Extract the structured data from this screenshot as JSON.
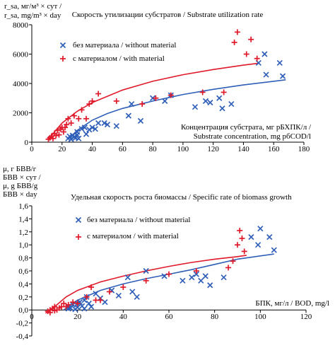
{
  "chart_data": [
    {
      "type": "scatter",
      "title": "Скорость утилизации субстратов / Substrate utilization rate",
      "ylabel_lines": [
        "r_sa, мг/м³ × сут /",
        "r_sa, mg/m³ × day"
      ],
      "xlabel_lines": [
        "Концентрация субстрата, мг рБХПК/л /",
        "Substrate concentration, mg рбCOD/l"
      ],
      "xlim": [
        0,
        180
      ],
      "ylim": [
        0,
        8000
      ],
      "xticks": [
        "0",
        "20",
        "40",
        "60",
        "80",
        "100",
        "120",
        "140",
        "160",
        "180"
      ],
      "yticks": [
        "0",
        "2000",
        "4000",
        "6000",
        "8000"
      ],
      "legend": [
        "без материала / without material",
        "с материалом / with material"
      ],
      "series": [
        {
          "name": "без материала / without material",
          "color": "#2f5fb8",
          "marker": "x",
          "points": [
            [
              24,
              250
            ],
            [
              25,
              400
            ],
            [
              26,
              200
            ],
            [
              27,
              450
            ],
            [
              28,
              350
            ],
            [
              29,
              300
            ],
            [
              30,
              500
            ],
            [
              30,
              700
            ],
            [
              31,
              250
            ],
            [
              33,
              900
            ],
            [
              35,
              1000
            ],
            [
              36,
              550
            ],
            [
              38,
              850
            ],
            [
              40,
              1000
            ],
            [
              42,
              900
            ],
            [
              44,
              1300
            ],
            [
              48,
              1300
            ],
            [
              50,
              1200
            ],
            [
              56,
              1100
            ],
            [
              64,
              1800
            ],
            [
              66,
              2600
            ],
            [
              72,
              1450
            ],
            [
              80,
              3000
            ],
            [
              88,
              2800
            ],
            [
              92,
              3200
            ],
            [
              108,
              2400
            ],
            [
              115,
              2800
            ],
            [
              118,
              2700
            ],
            [
              124,
              3000
            ],
            [
              126,
              2300
            ],
            [
              132,
              2600
            ],
            [
              150,
              5400
            ],
            [
              154,
              6000
            ],
            [
              155,
              4600
            ],
            [
              164,
              5400
            ],
            [
              166,
              4500
            ]
          ],
          "fit": [
            [
              24,
              200
            ],
            [
              30,
              800
            ],
            [
              40,
              1500
            ],
            [
              50,
              1950
            ],
            [
              60,
              2300
            ],
            [
              80,
              2800
            ],
            [
              100,
              3250
            ],
            [
              120,
              3600
            ],
            [
              140,
              3900
            ],
            [
              160,
              4150
            ],
            [
              168,
              4250
            ]
          ]
        },
        {
          "name": "с материалом / with material",
          "color": "#e0192a",
          "marker": "+",
          "points": [
            [
              11,
              200
            ],
            [
              12,
              300
            ],
            [
              13,
              400
            ],
            [
              14,
              250
            ],
            [
              15,
              600
            ],
            [
              16,
              450
            ],
            [
              17,
              800
            ],
            [
              18,
              500
            ],
            [
              19,
              900
            ],
            [
              20,
              1000
            ],
            [
              21,
              700
            ],
            [
              22,
              1000
            ],
            [
              23,
              1200
            ],
            [
              24,
              1600
            ],
            [
              26,
              1300
            ],
            [
              28,
              1800
            ],
            [
              31,
              1600
            ],
            [
              33,
              2200
            ],
            [
              36,
              1600
            ],
            [
              38,
              2600
            ],
            [
              40,
              2800
            ],
            [
              44,
              3300
            ],
            [
              56,
              2800
            ],
            [
              73,
              2600
            ],
            [
              82,
              3000
            ],
            [
              92,
              3200
            ],
            [
              113,
              3400
            ],
            [
              127,
              3400
            ],
            [
              134,
              6800
            ],
            [
              136,
              7500
            ],
            [
              142,
              6000
            ],
            [
              145,
              7000
            ],
            [
              149,
              5700
            ]
          ],
          "fit": [
            [
              11,
              150
            ],
            [
              15,
              700
            ],
            [
              20,
              1300
            ],
            [
              30,
              2100
            ],
            [
              40,
              2700
            ],
            [
              60,
              3550
            ],
            [
              80,
              4150
            ],
            [
              100,
              4600
            ],
            [
              120,
              4950
            ],
            [
              140,
              5250
            ],
            [
              150,
              5380
            ]
          ]
        }
      ]
    },
    {
      "type": "scatter",
      "title": "Удельная скорость роста биомассы / Specific rate of biomass growth",
      "ylabel_lines": [
        "μ, г БВВ/г",
        "БВВ × сут /",
        "μ, g БВВ/g",
        "БВВ × day"
      ],
      "xlabel_lines": [
        "БПК, мг/л / BOD, mg/l"
      ],
      "xlim": [
        0,
        120
      ],
      "ylim": [
        -0.4,
        1.6
      ],
      "xticks": [
        "0",
        "20",
        "40",
        "60",
        "80",
        "100",
        "120"
      ],
      "yticks": [
        "-0,4",
        "-0,2",
        "0,0",
        "0,2",
        "0,4",
        "0,6",
        "0,8",
        "1,0",
        "1,2",
        "1,4",
        "1,6"
      ],
      "legend": [
        "без материала / without material",
        "с материалом / with material"
      ],
      "series": [
        {
          "name": "без материала / without material",
          "color": "#2f5fb8",
          "marker": "x",
          "points": [
            [
              16,
              0.02
            ],
            [
              16,
              0.05
            ],
            [
              17,
              0.03
            ],
            [
              18,
              0.08
            ],
            [
              19,
              0.01
            ],
            [
              20,
              0.1
            ],
            [
              20,
              0.04
            ],
            [
              21,
              0.12
            ],
            [
              22,
              0.06
            ],
            [
              23,
              0.15
            ],
            [
              23,
              0.02
            ],
            [
              24,
              0.2
            ],
            [
              25,
              0.1
            ],
            [
              26,
              0.05
            ],
            [
              28,
              0.25
            ],
            [
              30,
              0.18
            ],
            [
              32,
              0.12
            ],
            [
              35,
              0.3
            ],
            [
              38,
              0.22
            ],
            [
              42,
              0.5
            ],
            [
              44,
              0.28
            ],
            [
              46,
              0.2
            ],
            [
              50,
              0.6
            ],
            [
              58,
              0.52
            ],
            [
              66,
              0.45
            ],
            [
              70,
              0.5
            ],
            [
              72,
              0.55
            ],
            [
              74,
              0.45
            ],
            [
              76,
              0.52
            ],
            [
              78,
              0.38
            ],
            [
              84,
              0.5
            ],
            [
              96,
              1.12
            ],
            [
              99,
              1.0
            ],
            [
              100,
              1.25
            ],
            [
              104,
              1.12
            ],
            [
              106,
              0.92
            ]
          ],
          "fit": [
            [
              14,
              0.0
            ],
            [
              20,
              0.15
            ],
            [
              30,
              0.3
            ],
            [
              40,
              0.4
            ],
            [
              50,
              0.48
            ],
            [
              60,
              0.55
            ],
            [
              70,
              0.62
            ],
            [
              80,
              0.7
            ],
            [
              90,
              0.78
            ],
            [
              100,
              0.83
            ],
            [
              106,
              0.86
            ]
          ]
        },
        {
          "name": "с материалом / with material",
          "color": "#e0192a",
          "marker": "+",
          "points": [
            [
              7,
              -0.02
            ],
            [
              8,
              0.0
            ],
            [
              8,
              -0.04
            ],
            [
              9,
              0.02
            ],
            [
              10,
              0.05
            ],
            [
              10,
              -0.01
            ],
            [
              11,
              0.0
            ],
            [
              12,
              0.03
            ],
            [
              13,
              0.05
            ],
            [
              14,
              0.1
            ],
            [
              15,
              0.05
            ],
            [
              16,
              0.08
            ],
            [
              18,
              0.12
            ],
            [
              20,
              0.1
            ],
            [
              24,
              0.2
            ],
            [
              26,
              0.35
            ],
            [
              28,
              0.15
            ],
            [
              30,
              0.15
            ],
            [
              34,
              0.28
            ],
            [
              40,
              0.35
            ],
            [
              50,
              0.45
            ],
            [
              60,
              0.55
            ],
            [
              72,
              0.6
            ],
            [
              86,
              0.65
            ],
            [
              88,
              0.75
            ],
            [
              90,
              1.0
            ],
            [
              91,
              1.22
            ],
            [
              92,
              1.1
            ],
            [
              93,
              0.9
            ]
          ],
          "fit": [
            [
              6,
              -0.05
            ],
            [
              10,
              0.05
            ],
            [
              15,
              0.2
            ],
            [
              20,
              0.3
            ],
            [
              30,
              0.43
            ],
            [
              40,
              0.52
            ],
            [
              50,
              0.6
            ],
            [
              60,
              0.67
            ],
            [
              70,
              0.73
            ],
            [
              80,
              0.78
            ],
            [
              90,
              0.82
            ],
            [
              94,
              0.84
            ]
          ]
        }
      ]
    }
  ]
}
